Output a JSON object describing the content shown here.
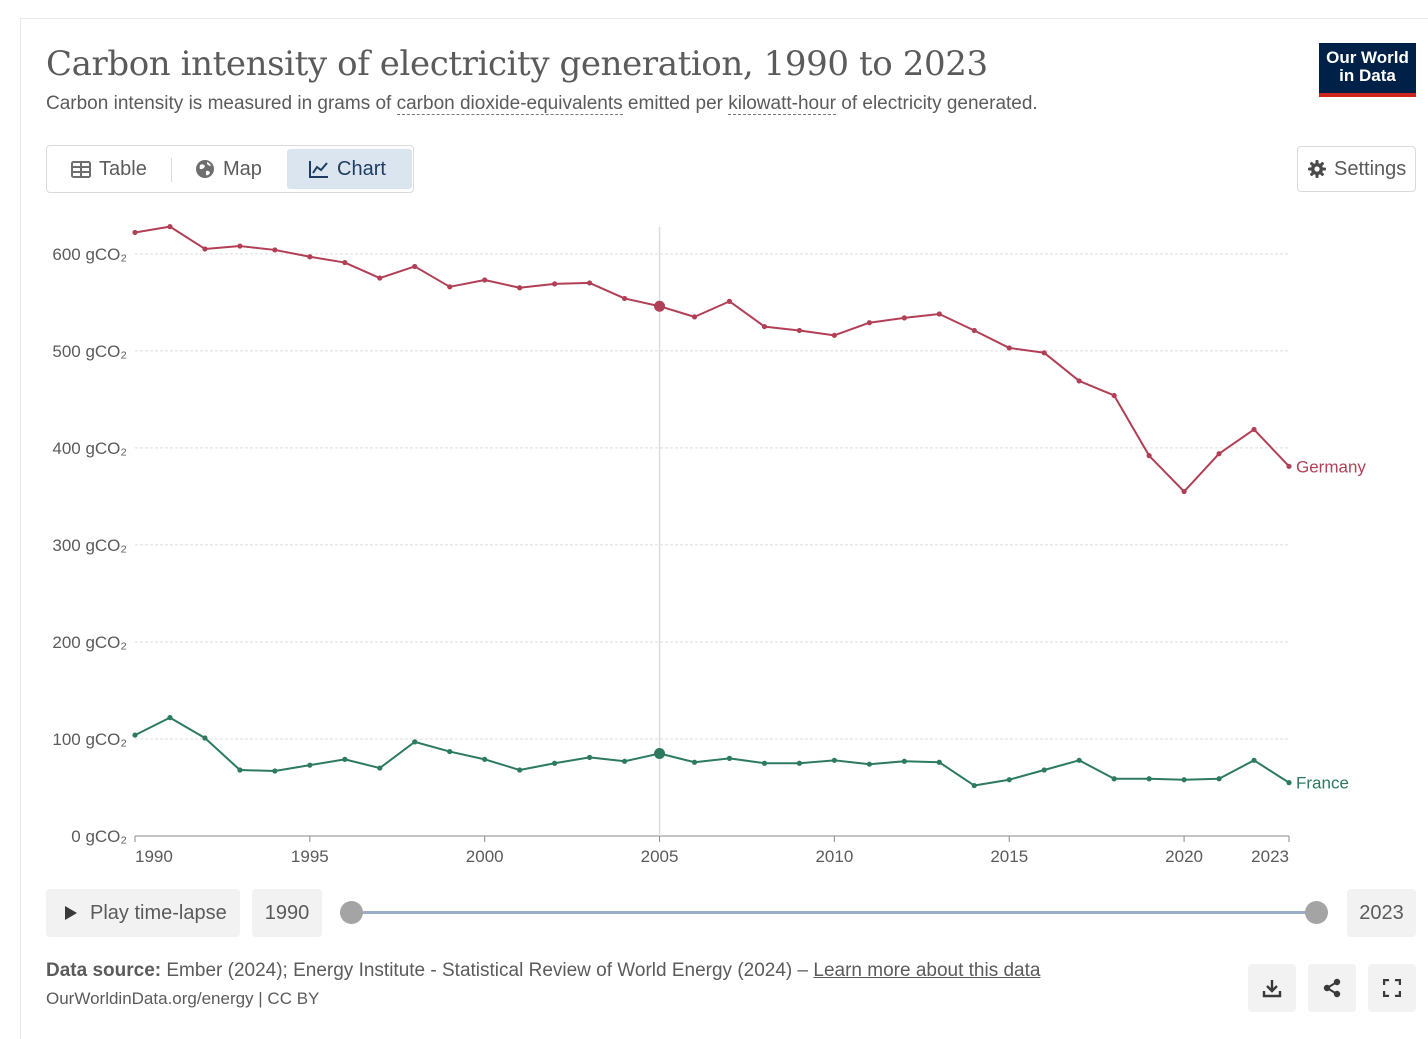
{
  "header": {
    "title": "Carbon intensity of electricity generation, 1990 to 2023",
    "subtitle_prefix": "Carbon intensity is measured in grams of ",
    "subtitle_link1": "carbon dioxide-equivalents",
    "subtitle_mid": " emitted per ",
    "subtitle_link2": "kilowatt-hour",
    "subtitle_suffix": " of electricity generated."
  },
  "logo": {
    "line1": "Our World",
    "line2": "in Data"
  },
  "tabs": [
    {
      "label": "Table",
      "icon": "table-icon"
    },
    {
      "label": "Map",
      "icon": "globe-icon"
    },
    {
      "label": "Chart",
      "icon": "line-chart-icon",
      "active": true
    }
  ],
  "settings_label": "Settings",
  "controls": {
    "play_label": "Play time-lapse",
    "start_year": "1990",
    "end_year": "2023"
  },
  "footer": {
    "source_label": "Data source:",
    "source_text": " Ember (2024); Energy Institute - Statistical Review of World Energy (2024) – ",
    "source_link": "Learn more about this data",
    "credit": "OurWorldinData.org/energy | CC BY"
  },
  "colors": {
    "germany": "#b13f55",
    "france": "#2c7a5f",
    "gridline": "#dddddd",
    "axis": "#5b5b5b"
  },
  "chart_data": {
    "type": "line",
    "title": "Carbon intensity of electricity generation, 1990 to 2023",
    "x": [
      1990,
      1991,
      1992,
      1993,
      1994,
      1995,
      1996,
      1997,
      1998,
      1999,
      2000,
      2001,
      2002,
      2003,
      2004,
      2005,
      2006,
      2007,
      2008,
      2009,
      2010,
      2011,
      2012,
      2013,
      2014,
      2015,
      2016,
      2017,
      2018,
      2019,
      2020,
      2021,
      2022,
      2023
    ],
    "series": [
      {
        "name": "Germany",
        "color": "#b13f55",
        "values": [
          622,
          628,
          605,
          608,
          604,
          597,
          591,
          575,
          587,
          566,
          573,
          565,
          569,
          570,
          554,
          546,
          535,
          551,
          525,
          521,
          516,
          529,
          534,
          538,
          521,
          503,
          498,
          469,
          454,
          392,
          355,
          394,
          419,
          381
        ]
      },
      {
        "name": "France",
        "color": "#2c7a5f",
        "values": [
          104,
          122,
          101,
          68,
          67,
          73,
          79,
          70,
          97,
          87,
          79,
          68,
          75,
          81,
          77,
          85,
          76,
          80,
          75,
          75,
          78,
          74,
          77,
          76,
          52,
          58,
          68,
          78,
          59,
          59,
          58,
          59,
          78,
          55
        ]
      }
    ],
    "xticks": [
      1990,
      1995,
      2000,
      2005,
      2010,
      2015,
      2020,
      2023
    ],
    "yticks": [
      {
        "value": 0,
        "label": "0 gCO₂"
      },
      {
        "value": 100,
        "label": "100 gCO₂"
      },
      {
        "value": 200,
        "label": "200 gCO₂"
      },
      {
        "value": 300,
        "label": "300 gCO₂"
      },
      {
        "value": 400,
        "label": "400 gCO₂"
      },
      {
        "value": 500,
        "label": "500 gCO₂"
      },
      {
        "value": 600,
        "label": "600 gCO₂"
      }
    ],
    "xlim": [
      1990,
      2023
    ],
    "ylim": [
      0,
      600
    ],
    "highlight_year": 2005,
    "grid": true,
    "legend": "line-end labels"
  }
}
